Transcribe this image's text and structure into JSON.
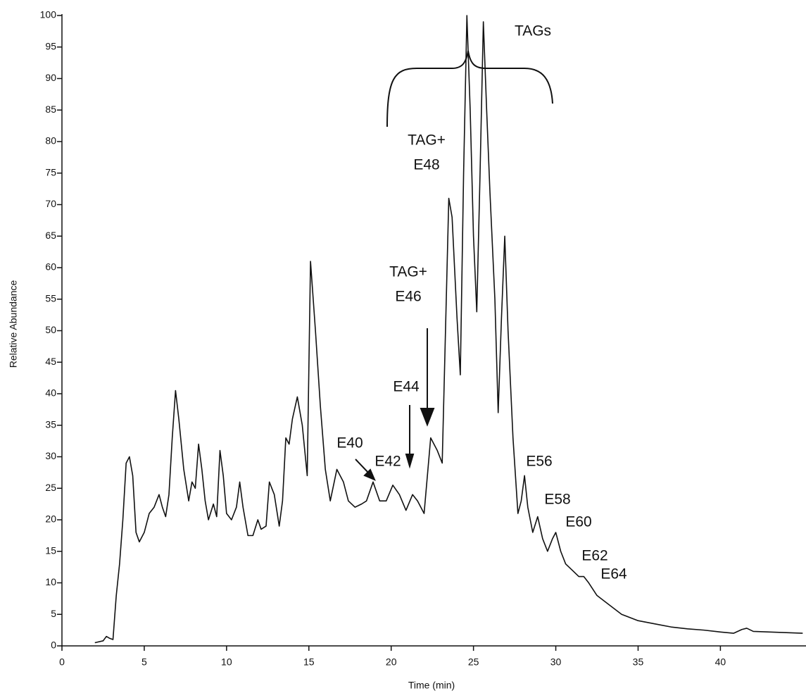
{
  "chart_data": {
    "type": "line",
    "xlabel": "Time (min)",
    "ylabel": "Relative Abundance",
    "x": [
      2.0,
      2.5,
      2.7,
      2.9,
      3.1,
      3.3,
      3.5,
      3.7,
      3.9,
      4.1,
      4.3,
      4.5,
      4.7,
      5.0,
      5.3,
      5.6,
      5.9,
      6.1,
      6.3,
      6.5,
      6.7,
      6.9,
      7.1,
      7.4,
      7.7,
      7.9,
      8.1,
      8.3,
      8.5,
      8.7,
      8.9,
      9.2,
      9.4,
      9.6,
      9.8,
      10.0,
      10.3,
      10.6,
      10.8,
      11.0,
      11.3,
      11.6,
      11.9,
      12.1,
      12.4,
      12.6,
      12.9,
      13.2,
      13.4,
      13.6,
      13.8,
      14.0,
      14.3,
      14.6,
      14.9,
      15.1,
      15.4,
      15.7,
      16.0,
      16.3,
      16.7,
      17.1,
      17.4,
      17.8,
      18.2,
      18.5,
      18.9,
      19.3,
      19.7,
      20.1,
      20.5,
      20.9,
      21.3,
      21.6,
      22.0,
      22.4,
      22.8,
      23.1,
      23.5,
      23.7,
      24.0,
      24.2,
      24.4,
      24.6,
      24.8,
      25.0,
      25.2,
      25.4,
      25.6,
      25.8,
      26.0,
      26.3,
      26.5,
      26.7,
      26.9,
      27.1,
      27.4,
      27.7,
      27.9,
      28.1,
      28.3,
      28.6,
      28.9,
      29.2,
      29.5,
      29.8,
      30.0,
      30.3,
      30.6,
      31.0,
      31.4,
      31.7,
      32.0,
      32.5,
      33,
      34,
      35,
      36,
      37,
      38,
      39,
      40,
      40.8,
      41.3,
      41.6,
      42,
      43,
      44,
      45
    ],
    "series": [
      {
        "color": "#111111",
        "values": [
          0.5,
          0.8,
          1.5,
          1.2,
          1.0,
          8,
          13,
          20,
          29,
          30,
          27,
          18,
          16.5,
          18,
          21,
          22,
          24,
          22,
          20.5,
          24,
          33,
          40.5,
          36,
          28,
          23,
          26,
          25,
          32,
          28,
          23,
          20,
          22.5,
          20.5,
          31,
          27,
          21,
          20,
          22,
          26,
          22,
          17.5,
          17.5,
          20,
          18.5,
          19,
          26,
          24,
          19,
          23,
          33,
          32,
          36,
          39.5,
          35,
          27,
          61,
          50,
          38,
          28,
          23,
          28,
          26,
          23,
          22,
          22.5,
          23,
          26,
          23,
          23,
          25.5,
          24,
          21.5,
          24,
          23,
          21,
          33,
          31,
          29,
          71,
          68,
          52,
          43,
          75,
          100,
          85,
          65,
          53,
          75,
          99,
          85,
          72,
          55,
          37,
          52,
          65,
          50,
          33,
          21,
          23,
          27,
          22,
          18,
          20.5,
          17,
          15,
          17,
          18,
          15,
          13,
          12,
          11,
          11,
          10,
          8,
          7,
          5,
          4,
          3.5,
          3,
          2.7,
          2.5,
          2.2,
          2.0,
          2.6,
          2.8,
          2.3,
          2.2,
          2.1,
          2.0
        ]
      }
    ],
    "xlim": [
      0,
      45.2
    ],
    "xticks": [
      0,
      5,
      10,
      15,
      20,
      25,
      30,
      35,
      40
    ],
    "ylim": [
      0,
      100
    ],
    "yticks": [
      0,
      5,
      10,
      15,
      20,
      25,
      30,
      35,
      40,
      45,
      50,
      55,
      60,
      65,
      70,
      75,
      80,
      85,
      90,
      95,
      100
    ],
    "annotations": [
      [
        "TAGs"
      ],
      [
        "TAG+",
        "E48"
      ],
      [
        "TAG+",
        "E46"
      ],
      [
        "E44"
      ],
      [
        "E40"
      ],
      [
        "E42"
      ],
      [
        "E56"
      ],
      [
        "E58"
      ],
      [
        "E60"
      ],
      [
        "E62"
      ],
      [
        "E64"
      ]
    ]
  }
}
